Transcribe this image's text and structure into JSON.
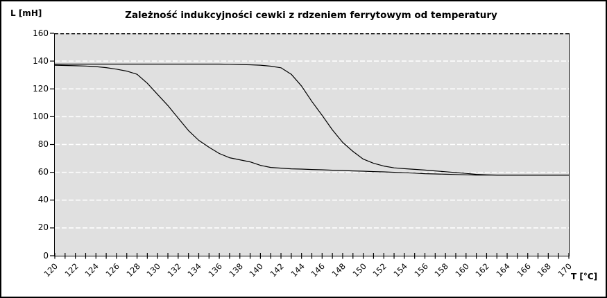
{
  "chart_data": {
    "type": "line",
    "title": "Zależność indukcyjności cewki z rdzeniem ferrytowym od temperatury",
    "xlabel": "T [°C]",
    "ylabel": "L [mH]",
    "xlim": [
      120,
      170
    ],
    "ylim": [
      0,
      160
    ],
    "x_minor_tick_step": 1,
    "x_label_step": 2,
    "y_tick_step": 20,
    "y_ticks": [
      0,
      20,
      40,
      60,
      80,
      100,
      120,
      140,
      160
    ],
    "x_tick_labels": [
      "120",
      "122",
      "124",
      "126",
      "128",
      "130",
      "132",
      "134",
      "136",
      "138",
      "140",
      "142",
      "144",
      "146",
      "148",
      "150",
      "152",
      "154",
      "156",
      "158",
      "160",
      "162",
      "164",
      "166",
      "168",
      "170"
    ],
    "grid": {
      "horizontal_gridlines": true,
      "style": "dashed",
      "gridline_color": "#ffffff",
      "top_boundary_dashed_color": "#000000"
    },
    "legend": "none",
    "x": [
      120,
      121,
      122,
      123,
      124,
      125,
      126,
      127,
      128,
      129,
      130,
      131,
      132,
      133,
      134,
      135,
      136,
      137,
      138,
      139,
      140,
      141,
      142,
      143,
      144,
      145,
      146,
      147,
      148,
      149,
      150,
      151,
      152,
      153,
      154,
      155,
      156,
      157,
      158,
      159,
      160,
      161,
      162,
      163,
      164,
      165,
      166,
      167,
      168,
      169,
      170
    ],
    "series": [
      {
        "name": "series-1-early-drop",
        "color": "#000000",
        "values": [
          137,
          136.8,
          136.6,
          136.4,
          136,
          135.3,
          134.2,
          132.8,
          130.5,
          124,
          116,
          108,
          99,
          90,
          83,
          78,
          73.5,
          70.5,
          69,
          67.5,
          65,
          63.5,
          63,
          62.5,
          62.3,
          62,
          61.8,
          61.5,
          61.3,
          61,
          60.8,
          60.5,
          60.3,
          60,
          59.7,
          59.4,
          59,
          58.8,
          58.6,
          58.4,
          58.2,
          58,
          58,
          58,
          58,
          58,
          58,
          58,
          58,
          58,
          58
        ]
      },
      {
        "name": "series-2-late-drop",
        "color": "#000000",
        "values": [
          137.8,
          137.8,
          137.8,
          137.8,
          137.8,
          137.8,
          137.8,
          137.8,
          137.8,
          137.8,
          137.8,
          137.8,
          137.8,
          137.8,
          137.8,
          137.8,
          137.8,
          137.7,
          137.5,
          137.3,
          137,
          136.3,
          135.2,
          130.5,
          122,
          111,
          101,
          90.5,
          81.5,
          75,
          69.5,
          66.5,
          64.5,
          63.2,
          62.6,
          62.1,
          61.6,
          61,
          60.4,
          59.8,
          59.2,
          58.5,
          58.2,
          58,
          58,
          58,
          58,
          58,
          58,
          58,
          58
        ]
      }
    ]
  },
  "colors": {
    "plot_background": "#e0e0e0",
    "outer_background": "#ffffff",
    "frame": "#000000",
    "text": "#000000"
  }
}
